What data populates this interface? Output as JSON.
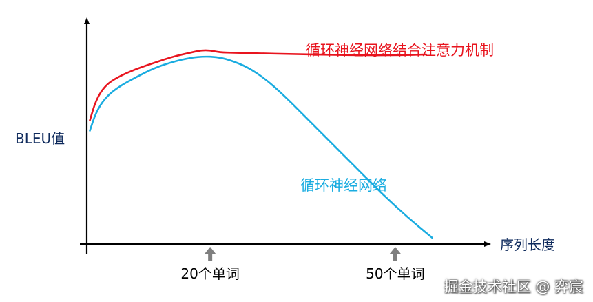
{
  "chart_data": {
    "type": "line",
    "ylabel": "BLEU值",
    "xlabel": "序列长度",
    "x_markers": [
      {
        "x": 20,
        "label": "20个单词"
      },
      {
        "x": 50,
        "label": "50个单词"
      }
    ],
    "x_range": [
      0,
      62
    ],
    "y_range": [
      0,
      100
    ],
    "grid": false,
    "series": [
      {
        "name": "循环神经网络结合注意力机制",
        "color": "#e8141e",
        "points": [
          [
            0.5,
            60
          ],
          [
            1.5,
            70
          ],
          [
            3,
            77
          ],
          [
            5,
            81
          ],
          [
            8,
            85
          ],
          [
            11,
            88
          ],
          [
            14,
            91
          ],
          [
            17,
            93
          ],
          [
            18.5,
            94
          ],
          [
            20,
            94
          ],
          [
            21.5,
            93
          ],
          [
            24,
            92.8
          ],
          [
            28,
            92.5
          ],
          [
            33,
            92.2
          ],
          [
            40,
            91.8
          ],
          [
            46,
            91.6
          ],
          [
            52,
            91.7
          ],
          [
            55,
            92
          ]
        ]
      },
      {
        "name": "循环神经网络",
        "color": "#1aace0",
        "points": [
          [
            0.5,
            55
          ],
          [
            1.5,
            64
          ],
          [
            3,
            71
          ],
          [
            5,
            76
          ],
          [
            8,
            81
          ],
          [
            11,
            85.5
          ],
          [
            14,
            88.5
          ],
          [
            17,
            90.5
          ],
          [
            19,
            91
          ],
          [
            21,
            90.8
          ],
          [
            23,
            89.5
          ],
          [
            26,
            86
          ],
          [
            29,
            80
          ],
          [
            32,
            72
          ],
          [
            36,
            60
          ],
          [
            40,
            48
          ],
          [
            44,
            36
          ],
          [
            48,
            24
          ],
          [
            52,
            13
          ],
          [
            56,
            3
          ]
        ]
      }
    ]
  },
  "watermark": "掘金技术社区 @ 弈宸"
}
